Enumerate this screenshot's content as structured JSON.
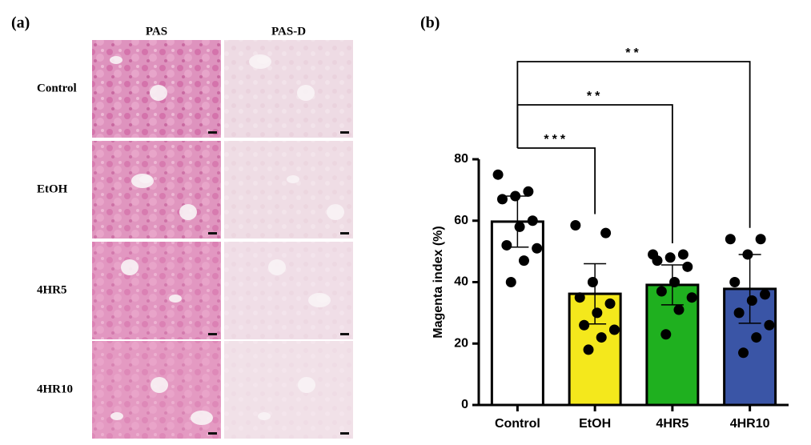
{
  "panel_a": {
    "label": "(a)",
    "columns": [
      "PAS",
      "PAS-D"
    ],
    "rows": [
      "Control",
      "EtOH",
      "4HR5",
      "4HR10"
    ]
  },
  "chart_data": {
    "type": "bar",
    "label": "(b)",
    "ylabel": "Magenta index (%)",
    "categories": [
      "Control",
      "EtOH",
      "4HR5",
      "4HR10"
    ],
    "values": [
      59.7,
      36.2,
      39.1,
      37.8
    ],
    "errors": [
      8.3,
      9.8,
      6.5,
      11.2
    ],
    "colors": [
      "#ffffff",
      "#f4e81c",
      "#1fb01f",
      "#3a55a6"
    ],
    "points": [
      [
        75,
        69.5,
        68,
        67,
        60,
        58,
        52,
        51,
        47,
        40
      ],
      [
        58.5,
        56,
        40,
        35,
        33,
        30,
        26,
        24.5,
        22,
        18
      ],
      [
        49,
        49,
        48,
        47,
        45,
        40,
        37,
        35,
        31,
        23
      ],
      [
        54,
        54,
        49,
        40,
        36,
        34,
        30,
        26,
        22,
        17
      ]
    ],
    "point_color": "#000000",
    "significance": [
      {
        "label": "***",
        "groups": [
          "Control",
          "EtOH"
        ]
      },
      {
        "label": "**",
        "groups": [
          "Control",
          "4HR5"
        ]
      },
      {
        "label": "**",
        "groups": [
          "Control",
          "4HR10"
        ]
      }
    ],
    "ylim": [
      0,
      80
    ],
    "yticks": [
      0,
      20,
      40,
      60,
      80
    ]
  }
}
